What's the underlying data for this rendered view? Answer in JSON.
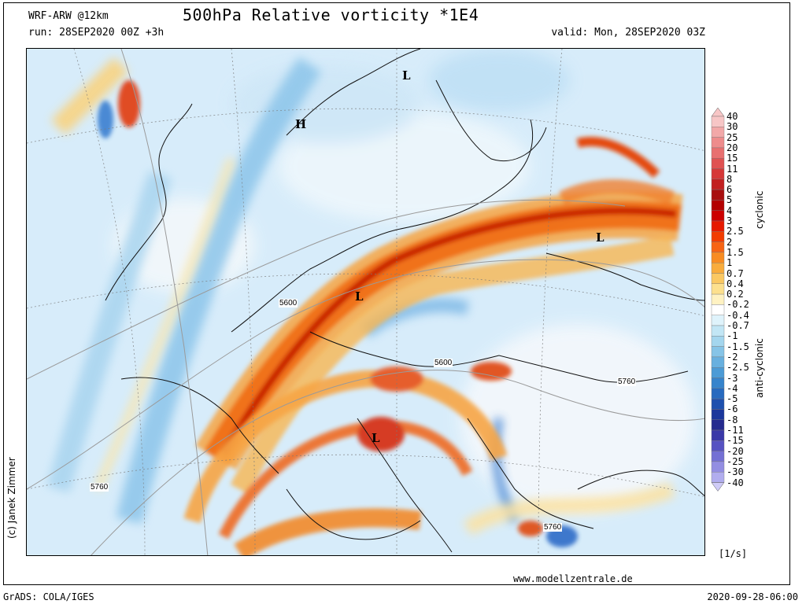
{
  "header": {
    "model": "WRF-ARW @12km",
    "run": "run: 28SEP2020 00Z +3h",
    "title": "500hPa Relative vorticity *1E4",
    "valid": "valid: Mon, 28SEP2020 03Z"
  },
  "map": {
    "pressure_centers": [
      {
        "label": "L",
        "kind": "low"
      },
      {
        "label": "H",
        "kind": "high"
      },
      {
        "label": "L",
        "kind": "low"
      },
      {
        "label": "L",
        "kind": "low"
      },
      {
        "label": "L",
        "kind": "low"
      }
    ],
    "isoline_labels": [
      "5600",
      "5600",
      "5760",
      "5760",
      "5760"
    ]
  },
  "legend": {
    "levels": [
      "40",
      "30",
      "25",
      "20",
      "15",
      "11",
      "8",
      "6",
      "5",
      "4",
      "3",
      "2.5",
      "2",
      "1.5",
      "1",
      "0.7",
      "0.4",
      "0.2",
      "-0.2",
      "-0.4",
      "-0.7",
      "-1",
      "-1.5",
      "-2",
      "-2.5",
      "-3",
      "-4",
      "-5",
      "-6",
      "-8",
      "-11",
      "-15",
      "-20",
      "-25",
      "-30",
      "-40"
    ],
    "colors": [
      "#f7c6c6",
      "#f2a8a8",
      "#ee8c8c",
      "#e87070",
      "#e05252",
      "#d63838",
      "#c22020",
      "#a80f0f",
      "#b30000",
      "#cc0000",
      "#e61a00",
      "#f23c00",
      "#f76414",
      "#f88c22",
      "#f9ac3c",
      "#fbc862",
      "#fde08e",
      "#fff2c2",
      "#ffffff",
      "#dff3fb",
      "#c2e6f5",
      "#a4d6ee",
      "#86c4e7",
      "#68b0df",
      "#4c9bd6",
      "#3684cc",
      "#276abf",
      "#1e50ae",
      "#1b379c",
      "#252b8f",
      "#3a38a8",
      "#5652c2",
      "#7470d4",
      "#938ee2",
      "#b1adee",
      "#cfcbf7"
    ],
    "cyclonic_label": "cyclonic",
    "anticyclonic_label": "anti-cyclonic",
    "unit": "[1/s]"
  },
  "credits": {
    "author": "(c) Janek Zimmer",
    "website": "www.modellzentrale.de",
    "software": "GrADS: COLA/IGES",
    "timestamp": "2020-09-28-06:00"
  }
}
